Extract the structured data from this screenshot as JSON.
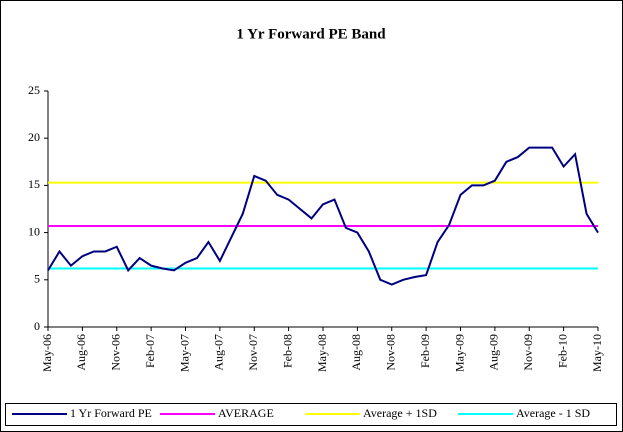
{
  "chart_data": {
    "type": "line",
    "title": "1 Yr Forward PE Band",
    "categories": [
      "May-06",
      null,
      null,
      "Aug-06",
      null,
      null,
      "Nov-06",
      null,
      null,
      "Feb-07",
      null,
      null,
      "May-07",
      null,
      null,
      "Aug-07",
      null,
      null,
      "Nov-07",
      null,
      null,
      "Feb-08",
      null,
      null,
      "May-08",
      null,
      null,
      "Aug-08",
      null,
      null,
      "Nov-08",
      null,
      null,
      "Feb-09",
      null,
      null,
      "May-09",
      null,
      null,
      "Aug-09",
      null,
      null,
      "Nov-09",
      null,
      null,
      "Feb-10",
      null,
      null,
      "May-10"
    ],
    "series": [
      {
        "name": "1 Yr Forward PE",
        "color": "#000080",
        "values": [
          6,
          8,
          6.5,
          7.5,
          8,
          8,
          8.5,
          6,
          7.3,
          6.5,
          6.2,
          6,
          6.8,
          7.3,
          9,
          7,
          9.5,
          12,
          16,
          15.5,
          14,
          13.5,
          12.5,
          11.5,
          13,
          13.5,
          10.5,
          10,
          8,
          5,
          4.5,
          5,
          5.3,
          5.5,
          9,
          10.8,
          14,
          15,
          15,
          15.5,
          17.5,
          18,
          19,
          19,
          19,
          17,
          18.3,
          12,
          10
        ]
      },
      {
        "name": "AVERAGE",
        "color": "#ff00ff",
        "values": [
          10.7,
          10.7,
          10.7,
          10.7,
          10.7,
          10.7,
          10.7,
          10.7,
          10.7,
          10.7,
          10.7,
          10.7,
          10.7,
          10.7,
          10.7,
          10.7,
          10.7,
          10.7,
          10.7,
          10.7,
          10.7,
          10.7,
          10.7,
          10.7,
          10.7,
          10.7,
          10.7,
          10.7,
          10.7,
          10.7,
          10.7,
          10.7,
          10.7,
          10.7,
          10.7,
          10.7,
          10.7,
          10.7,
          10.7,
          10.7,
          10.7,
          10.7,
          10.7,
          10.7,
          10.7,
          10.7,
          10.7,
          10.7,
          10.7
        ]
      },
      {
        "name": "Average + 1SD",
        "color": "#ffff00",
        "values": [
          15.3,
          15.3,
          15.3,
          15.3,
          15.3,
          15.3,
          15.3,
          15.3,
          15.3,
          15.3,
          15.3,
          15.3,
          15.3,
          15.3,
          15.3,
          15.3,
          15.3,
          15.3,
          15.3,
          15.3,
          15.3,
          15.3,
          15.3,
          15.3,
          15.3,
          15.3,
          15.3,
          15.3,
          15.3,
          15.3,
          15.3,
          15.3,
          15.3,
          15.3,
          15.3,
          15.3,
          15.3,
          15.3,
          15.3,
          15.3,
          15.3,
          15.3,
          15.3,
          15.3,
          15.3,
          15.3,
          15.3,
          15.3,
          15.3
        ]
      },
      {
        "name": "Average - 1 SD",
        "color": "#00ffff",
        "values": [
          6.2,
          6.2,
          6.2,
          6.2,
          6.2,
          6.2,
          6.2,
          6.2,
          6.2,
          6.2,
          6.2,
          6.2,
          6.2,
          6.2,
          6.2,
          6.2,
          6.2,
          6.2,
          6.2,
          6.2,
          6.2,
          6.2,
          6.2,
          6.2,
          6.2,
          6.2,
          6.2,
          6.2,
          6.2,
          6.2,
          6.2,
          6.2,
          6.2,
          6.2,
          6.2,
          6.2,
          6.2,
          6.2,
          6.2,
          6.2,
          6.2,
          6.2,
          6.2,
          6.2,
          6.2,
          6.2,
          6.2,
          6.2,
          6.2
        ]
      }
    ],
    "ylim": [
      0,
      25
    ],
    "yticks": [
      0,
      5,
      10,
      15,
      20,
      25
    ],
    "grid": false,
    "legend": "bottom"
  }
}
